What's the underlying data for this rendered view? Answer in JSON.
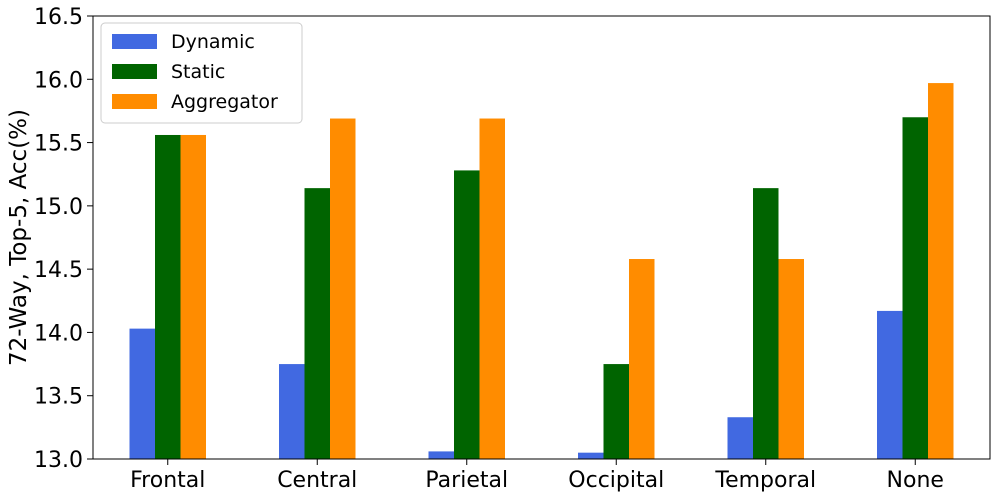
{
  "chart_data": {
    "type": "bar",
    "title": "",
    "xlabel": "",
    "ylabel": "72-Way, Top-5, Acc(%)",
    "ylim": [
      13.0,
      16.5
    ],
    "yticks": [
      "13.0",
      "13.5",
      "14.0",
      "14.5",
      "15.0",
      "15.5",
      "16.0",
      "16.5"
    ],
    "categories": [
      "Frontal",
      "Central",
      "Parietal",
      "Occipital",
      "Temporal",
      "None"
    ],
    "series": [
      {
        "name": "Dynamic",
        "color": "#4169e1",
        "values": [
          14.03,
          13.75,
          13.06,
          13.05,
          13.33,
          14.17
        ]
      },
      {
        "name": "Static",
        "color": "#006400",
        "values": [
          15.56,
          15.14,
          15.28,
          13.75,
          15.14,
          15.7
        ]
      },
      {
        "name": "Aggregator",
        "color": "#ff8c00",
        "values": [
          15.56,
          15.69,
          15.69,
          14.58,
          14.58,
          15.97
        ]
      }
    ],
    "grid": false,
    "legend_position": "top-left"
  }
}
